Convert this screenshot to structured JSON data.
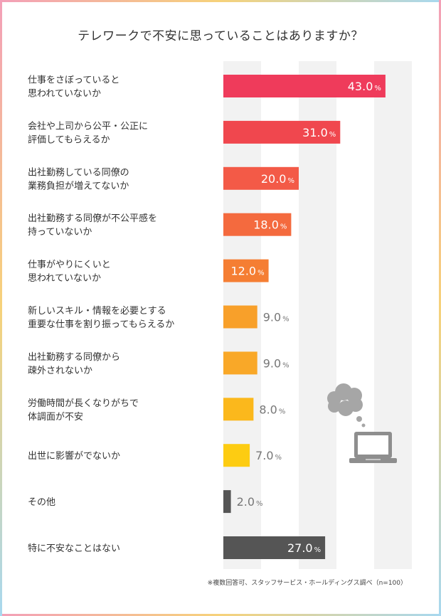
{
  "title": "テレワークで不安に思っていることはありますか？",
  "footnote": "※複数回答可、スタッフサービス・ホールディングス調べ（n=100）",
  "unit_symbol": "%",
  "chart_data": {
    "type": "bar",
    "orientation": "horizontal",
    "title": "テレワークで不安に思っていることはありますか？",
    "xlim": [
      0,
      50
    ],
    "grid": true,
    "categories": [
      [
        "仕事をさぼっていると",
        "思われていないか"
      ],
      [
        "会社や上司から公平・公正に",
        "評価してもらえるか"
      ],
      [
        "出社勤務している同僚の",
        "業務負担が増えてないか"
      ],
      [
        "出社勤務する同僚が不公平感を",
        "持っていないか"
      ],
      [
        "仕事がやりにくいと",
        "思われていないか"
      ],
      [
        "新しいスキル・情報を必要とする",
        "重要な仕事を割り振ってもらえるか"
      ],
      [
        "出社勤務する同僚から",
        "疎外されないか"
      ],
      [
        "労働時間が長くなりがちで",
        "体調面が不安"
      ],
      [
        "出世に影響がでないか"
      ],
      [
        "その他"
      ],
      [
        "特に不安なことはない"
      ]
    ],
    "values": [
      43.0,
      31.0,
      20.0,
      18.0,
      12.0,
      9.0,
      9.0,
      8.0,
      7.0,
      2.0,
      27.0
    ],
    "value_labels": [
      "43.0",
      "31.0",
      "20.0",
      "18.0",
      "12.0",
      "9.0",
      "9.0",
      "8.0",
      "7.0",
      "2.0",
      "27.0"
    ],
    "bar_colors": [
      "#ef3b5b",
      "#f0474e",
      "#f35a47",
      "#f46a3e",
      "#f57e33",
      "#f8a02a",
      "#f9a828",
      "#fbb81c",
      "#fdcc12",
      "#555555",
      "#555555"
    ]
  },
  "icons": {
    "thought_bubble": "thought-cloud-icon",
    "laptop": "laptop-icon"
  }
}
